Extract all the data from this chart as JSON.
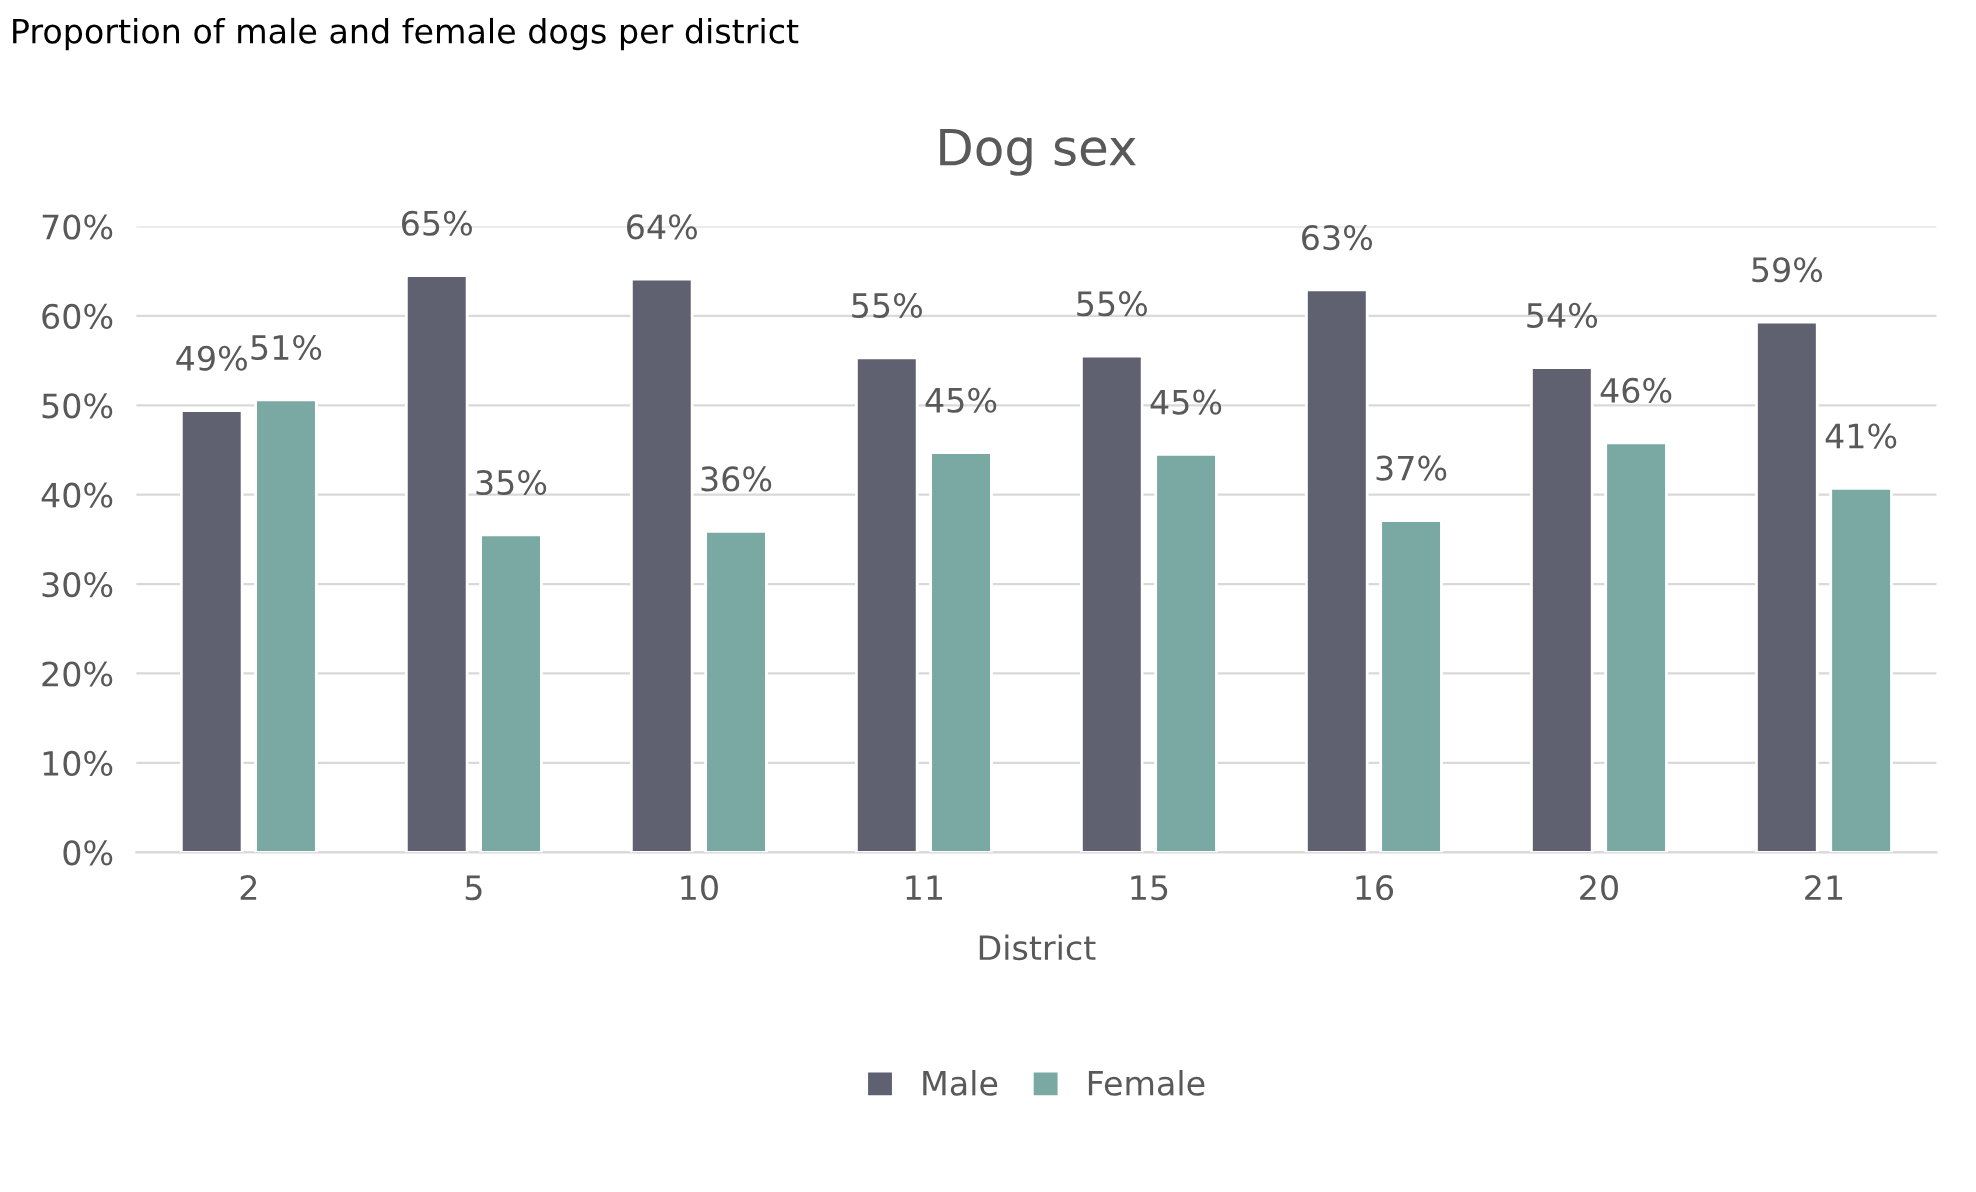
{
  "chart_data": {
    "type": "bar",
    "title": "Dog sex",
    "xlabel": "District",
    "annotations": [
      "Proportion of male and female dogs per district"
    ],
    "categories": [
      "2",
      "5",
      "10",
      "11",
      "15",
      "16",
      "20",
      "21"
    ],
    "series": [
      {
        "name": "Male",
        "color": "#5f6171",
        "values": [
          49.4,
          64.5,
          64.1,
          55.3,
          55.5,
          62.9,
          54.2,
          59.3
        ],
        "value_labels": [
          "49%",
          "65%",
          "64%",
          "55%",
          "55%",
          "63%",
          "54%",
          "59%"
        ]
      },
      {
        "name": "Female",
        "color": "#7aa9a4",
        "values": [
          50.6,
          35.5,
          35.9,
          44.7,
          44.5,
          37.1,
          45.8,
          40.7
        ],
        "value_labels": [
          "51%",
          "35%",
          "36%",
          "45%",
          "45%",
          "37%",
          "46%",
          "41%"
        ]
      }
    ],
    "ylim": [
      0,
      70
    ],
    "yticks": [
      {
        "value": 0,
        "label": "0%"
      },
      {
        "value": 10,
        "label": "10%"
      },
      {
        "value": 20,
        "label": "20%"
      },
      {
        "value": 30,
        "label": "30%"
      },
      {
        "value": 40,
        "label": "40%"
      },
      {
        "value": 50,
        "label": "50%"
      },
      {
        "value": 60,
        "label": "60%"
      },
      {
        "value": 70,
        "label": "70%"
      }
    ],
    "grid": "y",
    "legend": "bottom"
  }
}
